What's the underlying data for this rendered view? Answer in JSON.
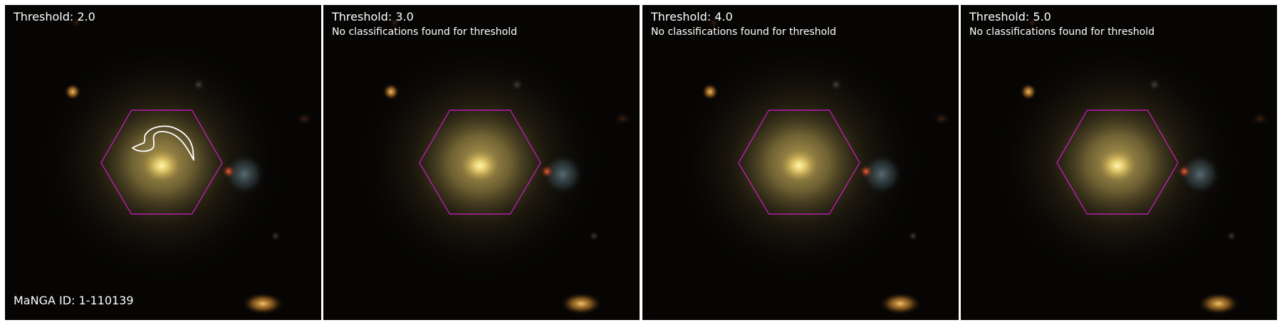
{
  "panels": [
    {
      "threshold_label": "Threshold: 2.0",
      "note": "",
      "has_contour": true
    },
    {
      "threshold_label": "Threshold: 3.0",
      "note": "No classifications found for threshold",
      "has_contour": false
    },
    {
      "threshold_label": "Threshold: 4.0",
      "note": "No classifications found for threshold",
      "has_contour": false
    },
    {
      "threshold_label": "Threshold: 5.0",
      "note": "No classifications found for threshold",
      "has_contour": false
    }
  ],
  "manga_id_label": "MaNGA ID: 1-110139",
  "colors": {
    "hexagon": "#d21cc8",
    "contour": "#ffffff",
    "text": "#ffffff",
    "background": "#060504"
  }
}
